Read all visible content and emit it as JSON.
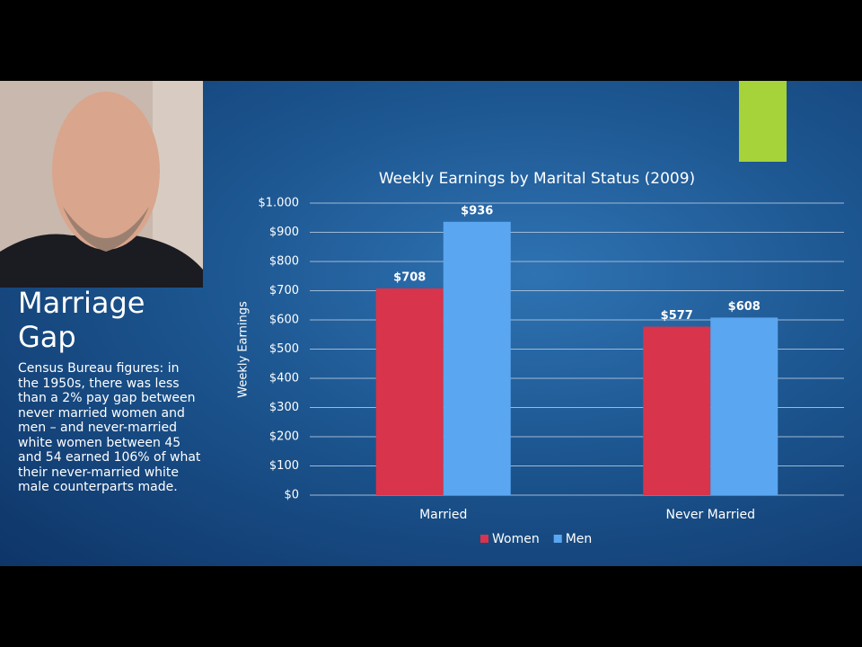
{
  "slide": {
    "title": "Marriage Gap",
    "body": "Census Bureau figures: in the 1950s, there was less than a 2% pay gap between never married women and men – and never-married white women between 45 and 54 earned 106% of what their never-married white male counterparts made."
  },
  "chart_data": {
    "type": "bar",
    "title": "Weekly Earnings by Marital Status (2009)",
    "y_label": "Weekly Earnings",
    "categories": [
      "Married",
      "Never Married"
    ],
    "series": [
      {
        "name": "Women",
        "color": "#d8344b",
        "values": [
          708,
          577
        ],
        "value_labels": [
          "$708",
          "$577"
        ]
      },
      {
        "name": "Men",
        "color": "#5ba6f0",
        "values": [
          936,
          608
        ],
        "value_labels": [
          "$936",
          "$608"
        ]
      }
    ],
    "ylim": [
      0,
      1000
    ],
    "yticks": [
      {
        "value": 0,
        "label": "$0"
      },
      {
        "value": 100,
        "label": "$100"
      },
      {
        "value": 200,
        "label": "$200"
      },
      {
        "value": 300,
        "label": "$300"
      },
      {
        "value": 400,
        "label": "$400"
      },
      {
        "value": 500,
        "label": "$500"
      },
      {
        "value": 600,
        "label": "$600"
      },
      {
        "value": 700,
        "label": "$700"
      },
      {
        "value": 800,
        "label": "$800"
      },
      {
        "value": 900,
        "label": "$900"
      },
      {
        "value": 1000,
        "label": "$1.000"
      }
    ],
    "grid": true,
    "legend": "bottom"
  }
}
